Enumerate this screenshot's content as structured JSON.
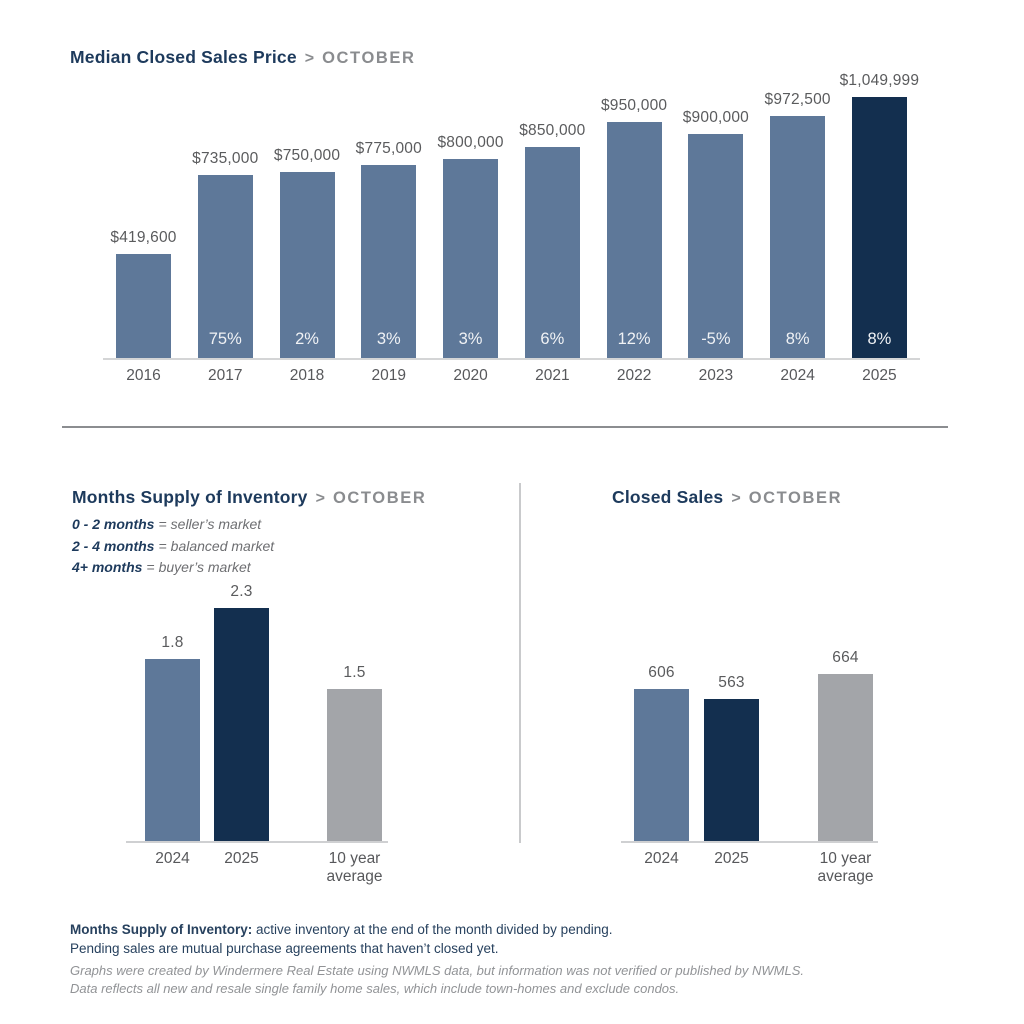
{
  "colors": {
    "navy_text": "#1d3a5c",
    "subtitle_gray": "#8a8c8f",
    "slate": "#5e7899",
    "dark_navy": "#132f4f",
    "gray_bar": "#a3a5a9",
    "label_gray": "#5a5b5d",
    "pct_text": "#f0f2f5",
    "footer_navy": "#27415e",
    "disclaimer_gray": "#919396"
  },
  "sections": {
    "median_price": {
      "title": "Median Closed Sales Price",
      "separator": ">",
      "subtitle": "OCTOBER"
    },
    "supply": {
      "title": "Months Supply of Inventory",
      "separator": ">",
      "subtitle": "OCTOBER",
      "legend": [
        {
          "term": "0 - 2 months",
          "eq": "=",
          "def": "seller’s market"
        },
        {
          "term": "2 - 4 months",
          "eq": "=",
          "def": "balanced market"
        },
        {
          "term": "4+ months",
          "eq": "=",
          "def": "buyer’s market"
        }
      ]
    },
    "closed_sales": {
      "title": "Closed Sales",
      "separator": ">",
      "subtitle": "OCTOBER"
    }
  },
  "chart_data": [
    {
      "id": "median-price",
      "type": "bar",
      "title": "Median Closed Sales Price > OCTOBER",
      "categories": [
        "2016",
        "2017",
        "2018",
        "2019",
        "2020",
        "2021",
        "2022",
        "2023",
        "2024",
        "2025"
      ],
      "values": [
        419600,
        735000,
        750000,
        775000,
        800000,
        850000,
        950000,
        900000,
        972500,
        1049999
      ],
      "value_labels": [
        "$419,600",
        "$735,000",
        "$750,000",
        "$775,000",
        "$800,000",
        "$850,000",
        "$950,000",
        "$900,000",
        "$972,500",
        "$1,049,999"
      ],
      "pct_labels": [
        "",
        "75%",
        "2%",
        "3%",
        "3%",
        "6%",
        "12%",
        "-5%",
        "8%",
        "8%"
      ],
      "bar_styles": [
        "slate",
        "slate",
        "slate",
        "slate",
        "slate",
        "slate",
        "slate",
        "slate",
        "slate",
        "navy"
      ],
      "ylim": [
        0,
        1049999
      ],
      "grid": false,
      "legend_position": "none"
    },
    {
      "id": "supply",
      "type": "bar",
      "title": "Months Supply of Inventory > OCTOBER",
      "categories": [
        "2024",
        "2025",
        "10 year average"
      ],
      "category_lines": [
        [
          "2024"
        ],
        [
          "2025"
        ],
        [
          "10 year",
          "average"
        ]
      ],
      "values": [
        1.8,
        2.3,
        1.5
      ],
      "value_labels": [
        "1.8",
        "2.3",
        "1.5"
      ],
      "pct_labels": null,
      "bar_styles": [
        "slate",
        "navy",
        "gray"
      ],
      "ylim": [
        0,
        2.3
      ],
      "grid": false,
      "legend_position": "none"
    },
    {
      "id": "closed-sales",
      "type": "bar",
      "title": "Closed Sales > OCTOBER",
      "categories": [
        "2024",
        "2025",
        "10 year average"
      ],
      "category_lines": [
        [
          "2024"
        ],
        [
          "2025"
        ],
        [
          "10 year",
          "average"
        ]
      ],
      "values": [
        606,
        563,
        664
      ],
      "value_labels": [
        "606",
        "563",
        "664"
      ],
      "pct_labels": null,
      "bar_styles": [
        "slate",
        "navy",
        "gray"
      ],
      "ylim": [
        0,
        664
      ],
      "grid": false,
      "legend_position": "none"
    }
  ],
  "footer": {
    "definition_bold": "Months Supply of Inventory:",
    "definition_rest": " active inventory at the end of the month divided by pending.",
    "definition_line2": "Pending sales are mutual purchase agreements that haven’t closed yet.",
    "disclaimer_line1": "Graphs were created by Windermere Real Estate using NWMLS data, but information was not verified or published by NWMLS.",
    "disclaimer_line2": "Data reflects all new and resale single family home sales, which include town-homes and exclude condos."
  }
}
